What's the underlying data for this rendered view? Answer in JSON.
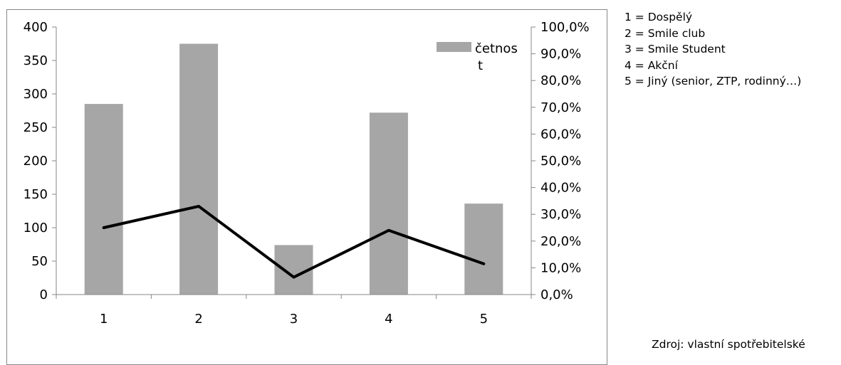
{
  "chart_data": {
    "type": "bar",
    "categories": [
      "1",
      "2",
      "3",
      "4",
      "5"
    ],
    "series": [
      {
        "name": "četnost",
        "chart_type": "bar",
        "axis": "left",
        "color": "#a6a6a6",
        "values": [
          285,
          375,
          74,
          272,
          136
        ]
      },
      {
        "chart_type": "line",
        "axis": "right",
        "color": "#000000",
        "values": [
          25.0,
          33.0,
          6.5,
          24.0,
          11.5
        ]
      }
    ],
    "y_left": {
      "ylim": [
        0,
        400
      ],
      "ticks": [
        "0",
        "50",
        "100",
        "150",
        "200",
        "250",
        "300",
        "350",
        "400"
      ]
    },
    "y_right": {
      "ylim": [
        0,
        100
      ],
      "unit": "%",
      "ticks": [
        "0,0%",
        "10,0%",
        "20,0%",
        "30,0%",
        "40,0%",
        "50,0%",
        "60,0%",
        "70,0%",
        "80,0%",
        "90,0%",
        "100,0%"
      ]
    },
    "legend": {
      "placement": "top-right",
      "label_line1": "četnos",
      "label_line2": "t"
    },
    "grid": false
  },
  "notes": {
    "items": [
      "1 = Dospělý",
      "2 = Smile club",
      "3 = Smile Student",
      "4 = Akční",
      "5 = Jiný (senior, ZTP, rodinný…)"
    ],
    "source": "Zdroj: vlastní spotřebitelské"
  }
}
